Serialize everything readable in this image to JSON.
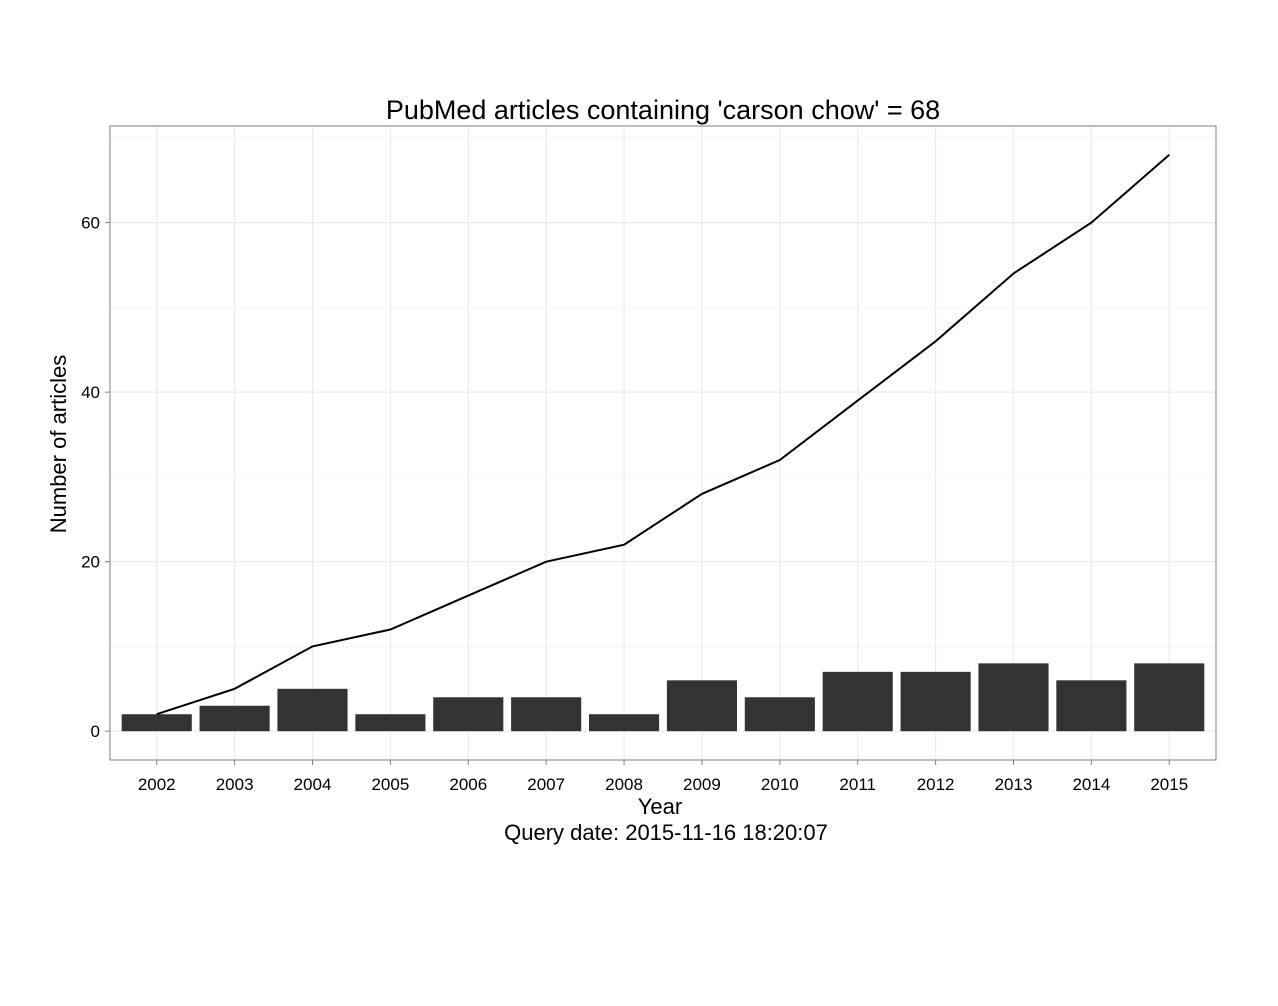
{
  "chart_data": {
    "type": "bar",
    "title": "PubMed articles containing 'carson chow' = 68",
    "xlabel": "Year",
    "caption": "Query date: 2015-11-16 18:20:07",
    "ylabel": "Number of articles",
    "categories": [
      "2002",
      "2003",
      "2004",
      "2005",
      "2006",
      "2007",
      "2008",
      "2009",
      "2010",
      "2011",
      "2012",
      "2013",
      "2014",
      "2015"
    ],
    "series": [
      {
        "type": "bar",
        "values": [
          2,
          3,
          5,
          2,
          4,
          4,
          2,
          6,
          4,
          7,
          7,
          8,
          6,
          8
        ],
        "color": "#333333"
      },
      {
        "type": "line",
        "values": [
          2,
          5,
          10,
          12,
          16,
          20,
          22,
          28,
          32,
          39,
          46,
          54,
          60,
          68
        ],
        "color": "#000000"
      }
    ],
    "y_ticks": [
      0,
      20,
      40,
      60
    ],
    "ylim": [
      -3.4,
      71.4
    ],
    "grid": true,
    "legend": "none"
  }
}
